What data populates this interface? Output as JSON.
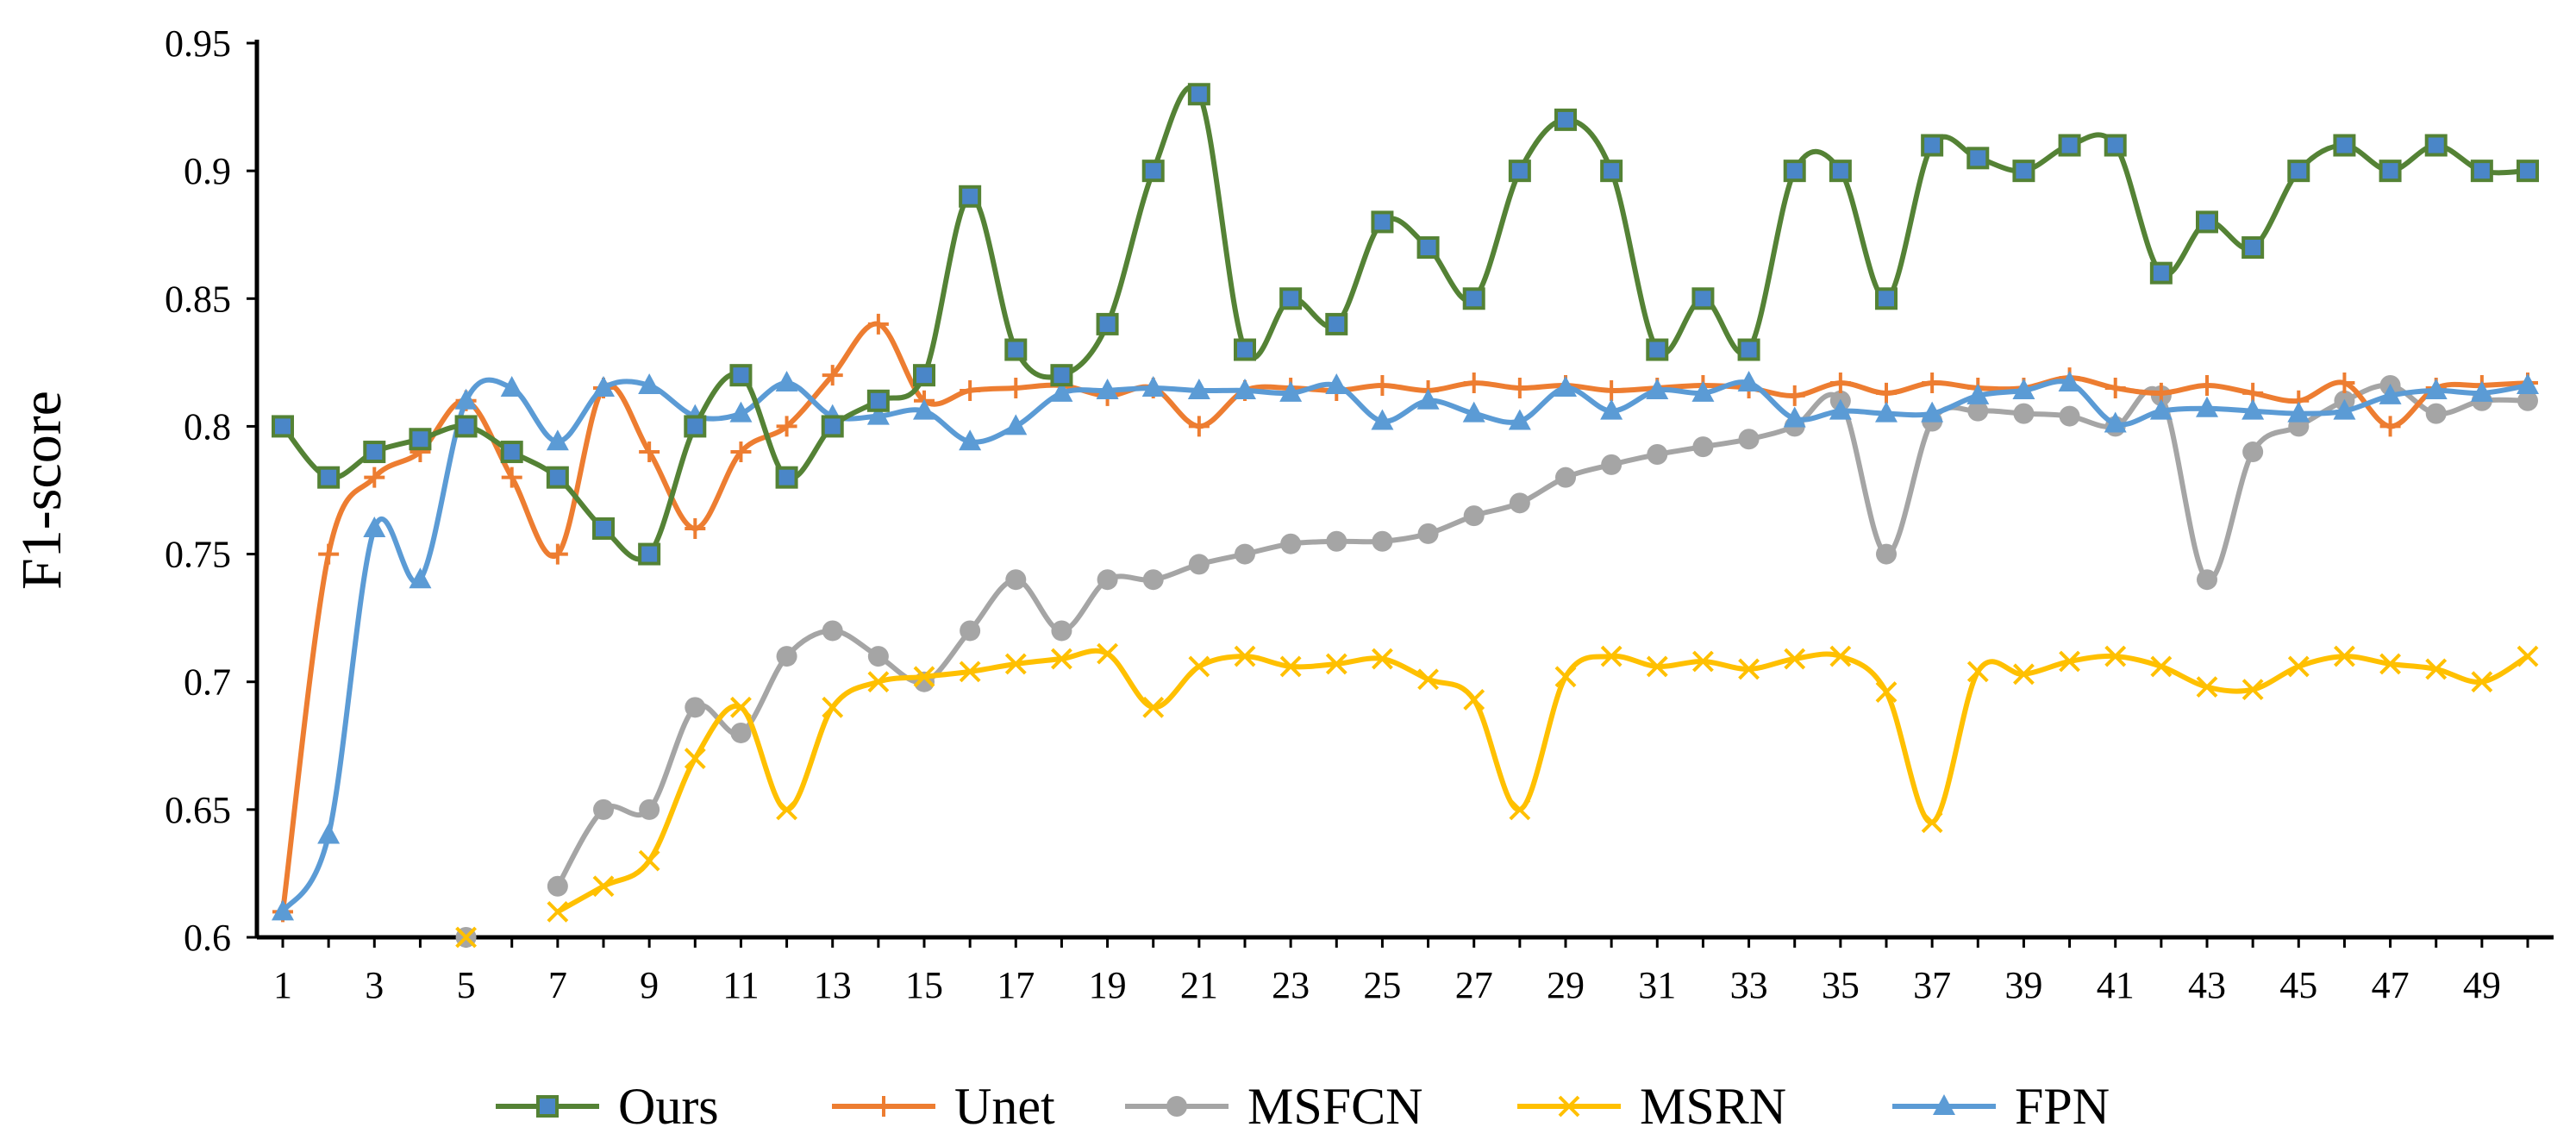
{
  "chart_data": {
    "type": "line",
    "title": "",
    "xlabel": "",
    "ylabel": "F1-score",
    "ylim": [
      0.6,
      0.95
    ],
    "xlim": [
      1,
      50
    ],
    "grid": false,
    "legend_position": "bottom",
    "x_tick_labels": [
      "1",
      "3",
      "5",
      "7",
      "9",
      "11",
      "13",
      "15",
      "17",
      "19",
      "21",
      "23",
      "25",
      "27",
      "29",
      "31",
      "33",
      "35",
      "37",
      "39",
      "41",
      "43",
      "45",
      "47",
      "49"
    ],
    "y_tick_labels": [
      "0.6",
      "0.65",
      "0.7",
      "0.75",
      "0.8",
      "0.85",
      "0.9",
      "0.95"
    ],
    "series": [
      {
        "name": "Ours",
        "color": "#548235",
        "marker_fill": "#4a86c8",
        "marker": "square",
        "values": [
          0.8,
          0.78,
          0.79,
          0.795,
          0.8,
          0.79,
          0.78,
          0.76,
          0.75,
          0.8,
          0.82,
          0.78,
          0.8,
          0.81,
          0.82,
          0.89,
          0.83,
          0.82,
          0.84,
          0.9,
          0.93,
          0.83,
          0.85,
          0.84,
          0.88,
          0.87,
          0.85,
          0.9,
          0.92,
          0.9,
          0.83,
          0.85,
          0.83,
          0.9,
          0.9,
          0.85,
          0.91,
          0.905,
          0.9,
          0.91,
          0.91,
          0.86,
          0.88,
          0.87,
          0.9,
          0.91,
          0.9,
          0.91,
          0.9,
          0.9
        ]
      },
      {
        "name": "Unet",
        "color": "#ed7d31",
        "marker": "plus",
        "values": [
          0.61,
          0.75,
          0.78,
          0.79,
          0.81,
          0.78,
          0.75,
          0.815,
          0.79,
          0.76,
          0.79,
          0.8,
          0.82,
          0.84,
          0.81,
          0.814,
          0.815,
          0.816,
          0.812,
          0.815,
          0.8,
          0.814,
          0.815,
          0.814,
          0.816,
          0.814,
          0.817,
          0.815,
          0.816,
          0.814,
          0.815,
          0.816,
          0.815,
          0.812,
          0.817,
          0.813,
          0.817,
          0.815,
          0.815,
          0.819,
          0.815,
          0.813,
          0.816,
          0.813,
          0.81,
          0.817,
          0.8,
          0.815,
          0.816,
          0.817
        ]
      },
      {
        "name": "MSFCN",
        "color": "#a5a5a5",
        "marker": "circle",
        "values": [
          null,
          null,
          null,
          null,
          0.6,
          null,
          0.62,
          0.65,
          0.65,
          0.69,
          0.68,
          0.71,
          0.72,
          0.71,
          0.7,
          0.72,
          0.74,
          0.72,
          0.74,
          0.74,
          0.746,
          0.75,
          0.754,
          0.755,
          0.755,
          0.758,
          0.765,
          0.77,
          0.78,
          0.785,
          0.789,
          0.792,
          0.795,
          0.8,
          0.81,
          0.75,
          0.802,
          0.806,
          0.805,
          0.804,
          0.8,
          0.812,
          0.74,
          0.79,
          0.8,
          0.81,
          0.816,
          0.805,
          0.81,
          0.81
        ]
      },
      {
        "name": "MSRN",
        "color": "#ffc000",
        "marker": "x",
        "values": [
          null,
          null,
          null,
          null,
          0.6,
          null,
          0.61,
          0.62,
          0.63,
          0.67,
          0.69,
          0.65,
          0.69,
          0.7,
          0.702,
          0.704,
          0.707,
          0.709,
          0.711,
          0.69,
          0.706,
          0.71,
          0.706,
          0.707,
          0.709,
          0.701,
          0.693,
          0.65,
          0.702,
          0.71,
          0.706,
          0.708,
          0.705,
          0.709,
          0.71,
          0.696,
          0.645,
          0.704,
          0.703,
          0.708,
          0.71,
          0.706,
          0.698,
          0.697,
          0.706,
          0.71,
          0.707,
          0.705,
          0.7,
          0.71
        ]
      },
      {
        "name": "FPN",
        "color": "#5b9bd5",
        "marker": "triangle",
        "values": [
          0.61,
          0.64,
          0.76,
          0.74,
          0.81,
          0.815,
          0.794,
          0.815,
          0.816,
          0.804,
          0.805,
          0.817,
          0.804,
          0.804,
          0.806,
          0.794,
          0.8,
          0.813,
          0.814,
          0.815,
          0.814,
          0.814,
          0.813,
          0.816,
          0.802,
          0.81,
          0.805,
          0.802,
          0.815,
          0.806,
          0.814,
          0.813,
          0.817,
          0.803,
          0.806,
          0.805,
          0.805,
          0.812,
          0.814,
          0.817,
          0.801,
          0.806,
          0.807,
          0.806,
          0.805,
          0.806,
          0.812,
          0.814,
          0.813,
          0.816
        ]
      }
    ]
  }
}
